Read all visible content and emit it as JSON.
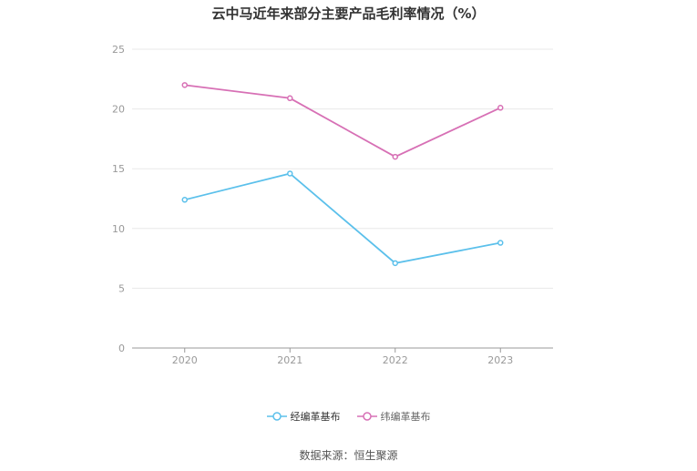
{
  "chart_data": {
    "type": "line",
    "title": "云中马近年来部分主要产品毛利率情况（%）",
    "categories": [
      "2020",
      "2021",
      "2022",
      "2023"
    ],
    "series": [
      {
        "name": "经编革基布",
        "values": [
          12.4,
          14.6,
          7.1,
          8.8
        ],
        "color": "#5bc0eb"
      },
      {
        "name": "纬编革基布",
        "values": [
          22.0,
          20.9,
          16.0,
          20.1
        ],
        "color": "#d770b5"
      }
    ],
    "ylim": [
      0,
      25
    ],
    "yticks": [
      0,
      5,
      10,
      15,
      20,
      25
    ],
    "grid": true,
    "legend_position": "bottom"
  },
  "source": "数据来源：恒生聚源"
}
